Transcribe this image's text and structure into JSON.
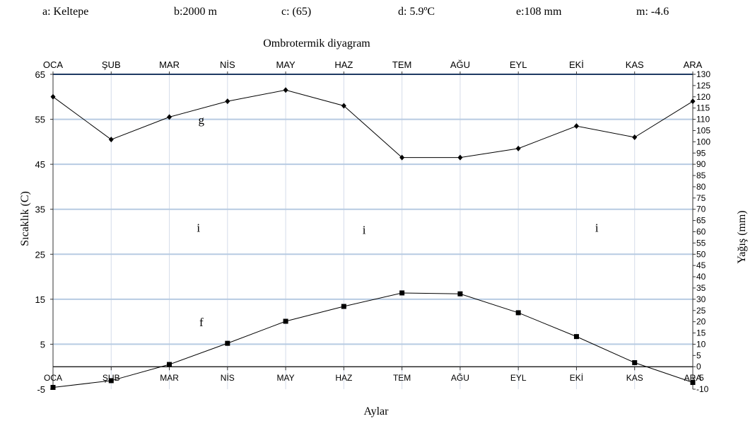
{
  "header": {
    "items": [
      "a: Keltepe",
      "b:2000 m",
      "c: (65)",
      "d: 5.9ºC",
      "e:108 mm",
      "m: -4.6"
    ]
  },
  "chart_data": {
    "type": "line",
    "title": "Ombrotermik diyagram",
    "xlabel": "Aylar",
    "ylabel_left": "Sıcaklık (C)",
    "ylabel_right": "Yağış (mm)",
    "categories": [
      "OCA",
      "ŞUB",
      "MAR",
      "NİS",
      "MAY",
      "HAZ",
      "TEM",
      "AĞU",
      "EYL",
      "EKİ",
      "KAS",
      "ARA"
    ],
    "left_axis": {
      "min": -5,
      "max": 65,
      "ticks": [
        -5,
        5,
        15,
        25,
        35,
        45,
        55,
        65
      ]
    },
    "right_axis": {
      "min": -10,
      "max": 130,
      "ticks": [
        -10,
        -5,
        0,
        5,
        10,
        15,
        20,
        25,
        30,
        35,
        40,
        45,
        50,
        55,
        60,
        65,
        70,
        75,
        80,
        85,
        90,
        95,
        100,
        105,
        110,
        115,
        120,
        125,
        130
      ]
    },
    "grid": true,
    "series": [
      {
        "axis": "right",
        "marker": "diamond",
        "values": [
          120,
          101,
          111,
          118,
          123,
          116,
          93,
          93,
          97,
          107,
          102,
          118
        ]
      },
      {
        "axis": "left",
        "marker": "square",
        "values": [
          -4.6,
          -3.1,
          0.5,
          5.2,
          10.1,
          13.4,
          16.4,
          16.2,
          12.0,
          6.7,
          0.9,
          -3.5
        ]
      }
    ],
    "annotations": [
      {
        "text": "g",
        "month": "MAR",
        "offset": 0.55,
        "value": 54
      },
      {
        "text": "i",
        "month": "MAR",
        "offset": 0.5,
        "value": 30
      },
      {
        "text": "i",
        "month": "HAZ",
        "offset": 0.35,
        "value": 29.5
      },
      {
        "text": "i",
        "month": "EKİ",
        "offset": 0.35,
        "value": 30
      },
      {
        "text": "f",
        "month": "MAR",
        "offset": 0.55,
        "value": 9
      }
    ]
  }
}
